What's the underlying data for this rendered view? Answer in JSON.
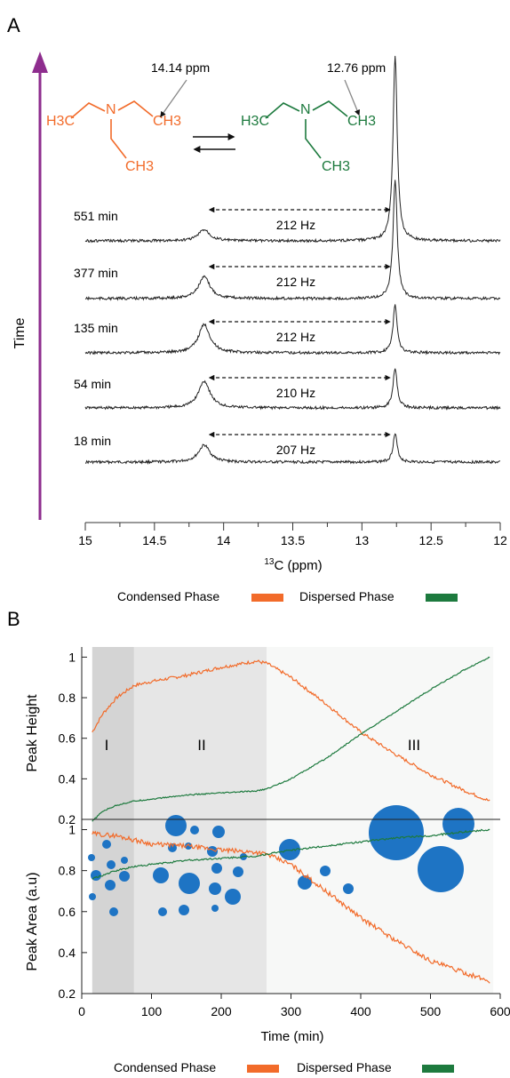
{
  "colors": {
    "condensed": "#f26b2a",
    "dispersed": "#1d7a3e",
    "arrow": "#8e2d8e",
    "droplet": "#1e74c4",
    "trace": "#222222",
    "region1": "#d4d4d4",
    "region2": "#e6e6e6",
    "region3": "#f7f8f7"
  },
  "panel_a": {
    "label": "A",
    "time_axis_label": "Time",
    "molecule_left": {
      "h3c": "H3C",
      "n": "N",
      "ch3_right": "CH3",
      "ch3_bottom": "CH3",
      "ppm_label": "14.14 ppm"
    },
    "molecule_right": {
      "h3c": "H3C",
      "n": "N",
      "ch3_right": "CH3",
      "ch3_bottom": "CH3",
      "ppm_label": "12.76 ppm"
    },
    "legend": {
      "condensed": "Condensed Phase",
      "dispersed": "Dispersed Phase"
    }
  },
  "panel_b": {
    "label": "B",
    "legend": {
      "condensed": "Condensed Phase",
      "dispersed": "Dispersed Phase"
    },
    "regions": [
      "I",
      "II",
      "III"
    ],
    "droplet_icon": "droplet-circle-icon"
  },
  "chart_data": [
    {
      "type": "line",
      "title": "",
      "xlabel": "13C (ppm)",
      "xlim": [
        15,
        12
      ],
      "x_reversed": true,
      "xticks": [
        "15",
        "14.5",
        "14",
        "13.5",
        "13",
        "12.5",
        "12"
      ],
      "spectra": [
        {
          "name": "18 min",
          "condensed_peak_ppm": 14.14,
          "dispersed_peak_ppm": 12.76,
          "condensed_height": 0.33,
          "dispersed_height": 0.55,
          "separation": "207 Hz"
        },
        {
          "name": "54 min",
          "condensed_peak_ppm": 14.14,
          "dispersed_peak_ppm": 12.76,
          "condensed_height": 0.52,
          "dispersed_height": 0.78,
          "separation": "210 Hz"
        },
        {
          "name": "135 min",
          "condensed_peak_ppm": 14.14,
          "dispersed_peak_ppm": 12.76,
          "condensed_height": 0.55,
          "dispersed_height": 0.92,
          "separation": "212 Hz"
        },
        {
          "name": "377 min",
          "condensed_peak_ppm": 14.14,
          "dispersed_peak_ppm": 12.76,
          "condensed_height": 0.42,
          "dispersed_height": 2.3,
          "separation": "212 Hz"
        },
        {
          "name": "551 min",
          "condensed_peak_ppm": 14.14,
          "dispersed_peak_ppm": 12.76,
          "condensed_height": 0.22,
          "dispersed_height": 3.6,
          "separation": "212 Hz"
        }
      ]
    },
    {
      "type": "line",
      "ylabel": "Peak Height",
      "xlim": [
        0,
        600
      ],
      "ylim": [
        0.2,
        1.05
      ],
      "yticks": [
        "0.2",
        "0.4",
        "0.6",
        "0.8",
        "1"
      ],
      "region_bounds_min": [
        15,
        75,
        265,
        590
      ],
      "series": [
        {
          "name": "Condensed Phase",
          "x": [
            15,
            30,
            50,
            75,
            100,
            150,
            200,
            250,
            265,
            300,
            350,
            400,
            450,
            500,
            550,
            585
          ],
          "y": [
            0.63,
            0.72,
            0.8,
            0.86,
            0.88,
            0.91,
            0.95,
            0.98,
            0.97,
            0.9,
            0.77,
            0.63,
            0.52,
            0.42,
            0.34,
            0.29
          ]
        },
        {
          "name": "Dispersed Phase",
          "x": [
            15,
            30,
            50,
            75,
            100,
            150,
            200,
            250,
            265,
            300,
            350,
            400,
            450,
            500,
            550,
            585
          ],
          "y": [
            0.19,
            0.24,
            0.27,
            0.29,
            0.3,
            0.32,
            0.33,
            0.34,
            0.35,
            0.4,
            0.5,
            0.62,
            0.73,
            0.84,
            0.94,
            1.0
          ]
        }
      ]
    },
    {
      "type": "line",
      "xlabel": "Time (min)",
      "ylabel": "Peak Area (a.u)",
      "xlim": [
        0,
        600
      ],
      "ylim": [
        0.2,
        1.05
      ],
      "xticks": [
        "0",
        "100",
        "200",
        "300",
        "400",
        "500",
        "600"
      ],
      "yticks": [
        "0.2",
        "0.4",
        "0.6",
        "0.8",
        "1"
      ],
      "series": [
        {
          "name": "Condensed Phase",
          "x": [
            15,
            50,
            75,
            100,
            150,
            200,
            250,
            265,
            300,
            350,
            400,
            450,
            500,
            550,
            585
          ],
          "y": [
            0.98,
            0.97,
            0.95,
            0.93,
            0.92,
            0.9,
            0.89,
            0.88,
            0.83,
            0.7,
            0.57,
            0.46,
            0.36,
            0.3,
            0.26
          ]
        },
        {
          "name": "Dispersed Phase",
          "x": [
            15,
            50,
            75,
            100,
            150,
            200,
            250,
            265,
            300,
            350,
            400,
            450,
            500,
            550,
            585
          ],
          "y": [
            0.76,
            0.8,
            0.82,
            0.83,
            0.85,
            0.86,
            0.87,
            0.88,
            0.9,
            0.92,
            0.94,
            0.96,
            0.97,
            0.99,
            1.0
          ]
        }
      ]
    }
  ]
}
